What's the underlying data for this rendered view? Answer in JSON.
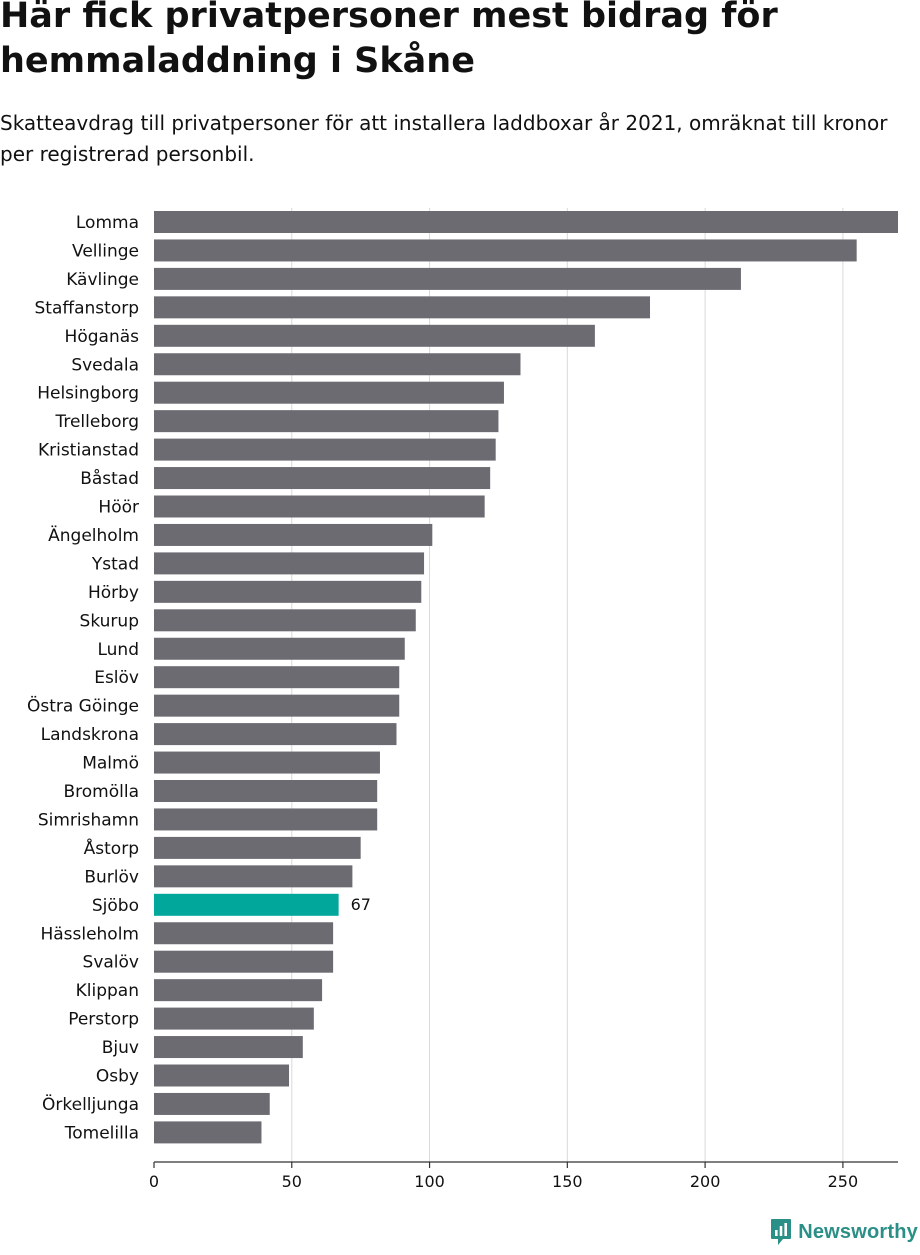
{
  "title": "Här fick privatpersoner mest bidrag för hemmaladdning i Skåne",
  "subtitle": "Skatteavdrag till privatpersoner för att installera laddboxar år 2021, omräknat till kronor per registrerad personbil.",
  "brand": "Newsworthy",
  "colors": {
    "bar": "#6d6b72",
    "highlight": "#00a79a",
    "grid": "#d9d9d9",
    "axis": "#333333",
    "text": "#111111",
    "brand": "#2a8f86"
  },
  "chart_data": {
    "type": "bar",
    "orientation": "horizontal",
    "title": "Här fick privatpersoner mest bidrag för hemmaladdning i Skåne",
    "xlabel": "",
    "ylabel": "",
    "xlim": [
      0,
      270
    ],
    "xticks": [
      0,
      50,
      100,
      150,
      200,
      250
    ],
    "grid": true,
    "highlight": "Sjöbo",
    "highlight_label": "67",
    "categories": [
      "Lomma",
      "Vellinge",
      "Kävlinge",
      "Staffanstorp",
      "Höganäs",
      "Svedala",
      "Helsingborg",
      "Trelleborg",
      "Kristianstad",
      "Båstad",
      "Höör",
      "Ängelholm",
      "Ystad",
      "Hörby",
      "Skurup",
      "Lund",
      "Eslöv",
      "Östra Göinge",
      "Landskrona",
      "Malmö",
      "Bromölla",
      "Simrishamn",
      "Åstorp",
      "Burlöv",
      "Sjöbo",
      "Hässleholm",
      "Svalöv",
      "Klippan",
      "Perstorp",
      "Bjuv",
      "Osby",
      "Örkelljunga",
      "Tomelilla"
    ],
    "values": [
      270,
      255,
      213,
      180,
      160,
      133,
      127,
      125,
      124,
      122,
      120,
      101,
      98,
      97,
      95,
      91,
      89,
      89,
      88,
      82,
      81,
      81,
      75,
      72,
      67,
      65,
      65,
      61,
      58,
      54,
      49,
      42,
      39
    ]
  }
}
